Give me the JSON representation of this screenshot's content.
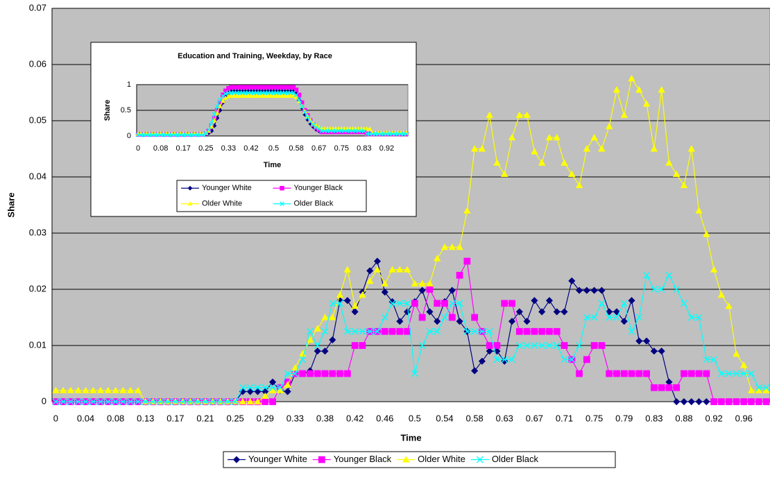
{
  "chart_data": [
    {
      "type": "line",
      "x_label": "Time",
      "y_label": "Share",
      "categories": [
        "0",
        null,
        null,
        null,
        "0.04",
        null,
        null,
        null,
        "0.08",
        null,
        null,
        null,
        "0.13",
        null,
        null,
        null,
        "0.17",
        null,
        null,
        null,
        "0.21",
        null,
        null,
        null,
        "0.25",
        null,
        null,
        null,
        "0.29",
        null,
        null,
        null,
        "0.33",
        null,
        null,
        null,
        "0.38",
        null,
        null,
        null,
        "0.42",
        null,
        null,
        null,
        "0.46",
        null,
        null,
        null,
        "0.5",
        null,
        null,
        null,
        "0.54",
        null,
        null,
        null,
        "0.58",
        null,
        null,
        null,
        "0.63",
        null,
        null,
        null,
        "0.67",
        null,
        null,
        null,
        "0.71",
        null,
        null,
        null,
        "0.75",
        null,
        null,
        null,
        "0.79",
        null,
        null,
        null,
        "0.83",
        null,
        null,
        null,
        "0.88",
        null,
        null,
        null,
        "0.92",
        null,
        null,
        null,
        "0.96",
        null,
        null,
        null
      ],
      "ylim": [
        0,
        0.07
      ],
      "yticks": [
        0,
        0.01,
        0.02,
        0.03,
        0.04,
        0.05,
        0.06,
        0.07
      ],
      "grid": true,
      "legend": "bottom",
      "series": [
        {
          "name": "Younger White",
          "color": "#000080",
          "marker": "diamond",
          "values": [
            0,
            0,
            0,
            0,
            0,
            0,
            0,
            0,
            0,
            0,
            0,
            0,
            0,
            0,
            0,
            0,
            0,
            0,
            0,
            0,
            0,
            0,
            0,
            0,
            0,
            0.0018,
            0.0018,
            0.0018,
            0.0018,
            0.0035,
            0.002,
            0.0018,
            0.005,
            0.005,
            0.0055,
            0.009,
            0.009,
            0.011,
            0.018,
            0.018,
            0.016,
            0.0195,
            0.0233,
            0.025,
            0.0195,
            0.0178,
            0.0143,
            0.016,
            0.0178,
            0.0198,
            0.016,
            0.0143,
            0.0178,
            0.0198,
            0.0143,
            0.0125,
            0.0055,
            0.0072,
            0.009,
            0.009,
            0.0072,
            0.0143,
            0.016,
            0.0143,
            0.018,
            0.016,
            0.018,
            0.016,
            0.016,
            0.0215,
            0.0198,
            0.0198,
            0.0198,
            0.0198,
            0.016,
            0.016,
            0.0143,
            0.018,
            0.0108,
            0.0108,
            0.009,
            0.009,
            0.0035,
            0,
            0,
            0,
            0,
            0,
            0,
            0,
            0,
            0,
            0,
            0,
            0,
            0
          ]
        },
        {
          "name": "Younger Black",
          "color": "#ff00ff",
          "marker": "square",
          "values": [
            0,
            0,
            0,
            0,
            0,
            0,
            0,
            0,
            0,
            0,
            0,
            0,
            0,
            0,
            0,
            0,
            0,
            0,
            0,
            0,
            0,
            0,
            0,
            0,
            0,
            0,
            0,
            0,
            0,
            0,
            0.0025,
            0.0035,
            0.005,
            0.005,
            0.005,
            0.005,
            0.005,
            0.005,
            0.005,
            0.005,
            0.01,
            0.01,
            0.0125,
            0.0125,
            0.0125,
            0.0125,
            0.0125,
            0.0125,
            0.0175,
            0.015,
            0.02,
            0.0175,
            0.0175,
            0.015,
            0.0225,
            0.025,
            0.015,
            0.0125,
            0.01,
            0.01,
            0.0175,
            0.0175,
            0.0125,
            0.0125,
            0.0125,
            0.0125,
            0.0125,
            0.0125,
            0.01,
            0.0075,
            0.005,
            0.0075,
            0.01,
            0.01,
            0.005,
            0.005,
            0.005,
            0.005,
            0.005,
            0.005,
            0.0025,
            0.0025,
            0.0025,
            0.0025,
            0.005,
            0.005,
            0.005,
            0.005,
            0,
            0,
            0,
            0,
            0,
            0,
            0,
            0
          ]
        },
        {
          "name": "Older White",
          "color": "#ffff00",
          "marker": "triangle",
          "values": [
            0.002,
            0.002,
            0.002,
            0.002,
            0.002,
            0.002,
            0.002,
            0.002,
            0.002,
            0.002,
            0.002,
            0.002,
            0,
            0,
            0,
            0,
            0,
            0,
            0,
            0,
            0,
            0,
            0,
            0,
            0,
            0,
            0,
            0,
            0.001,
            0.002,
            0.002,
            0.003,
            0.006,
            0.0085,
            0.011,
            0.013,
            0.015,
            0.015,
            0.019,
            0.0235,
            0.017,
            0.019,
            0.0215,
            0.0235,
            0.021,
            0.0235,
            0.0235,
            0.0235,
            0.021,
            0.021,
            0.021,
            0.0255,
            0.0275,
            0.0275,
            0.0275,
            0.034,
            0.045,
            0.045,
            0.051,
            0.0425,
            0.0405,
            0.047,
            0.051,
            0.051,
            0.0445,
            0.0425,
            0.047,
            0.047,
            0.0425,
            0.0405,
            0.0385,
            0.045,
            0.047,
            0.045,
            0.049,
            0.0555,
            0.051,
            0.0575,
            0.0555,
            0.053,
            0.045,
            0.0555,
            0.0425,
            0.0405,
            0.0385,
            0.045,
            0.034,
            0.0298,
            0.0235,
            0.019,
            0.017,
            0.0085,
            0.0065,
            0.002,
            0.002,
            0.002
          ]
        },
        {
          "name": "Older Black",
          "color": "#00ffff",
          "marker": "x",
          "values": [
            0,
            0,
            0,
            0,
            0,
            0,
            0,
            0,
            0,
            0,
            0,
            0,
            0,
            0,
            0,
            0,
            0,
            0,
            0,
            0,
            0,
            0,
            0,
            0,
            0,
            0.0025,
            0.0025,
            0.0025,
            0.0025,
            0.0025,
            0.0025,
            0.005,
            0.005,
            0.0075,
            0.0125,
            0.01,
            0.0125,
            0.0175,
            0.0175,
            0.0125,
            0.0125,
            0.0125,
            0.0125,
            0.0125,
            0.015,
            0.0175,
            0.0175,
            0.0175,
            0.005,
            0.01,
            0.0125,
            0.0125,
            0.015,
            0.0175,
            0.0175,
            0.0125,
            0.0125,
            0.0125,
            0.0125,
            0.0075,
            0.0075,
            0.0075,
            0.01,
            0.01,
            0.01,
            0.01,
            0.01,
            0.01,
            0.0075,
            0.0075,
            0.01,
            0.015,
            0.015,
            0.0175,
            0.015,
            0.015,
            0.0175,
            0.0125,
            0.015,
            0.0225,
            0.02,
            0.02,
            0.0225,
            0.02,
            0.0175,
            0.015,
            0.015,
            0.0075,
            0.0075,
            0.005,
            0.005,
            0.005,
            0.005,
            0.005,
            0.0025,
            0.0025
          ]
        }
      ]
    },
    {
      "type": "line",
      "title": "Education and Training, Weekday, by Race",
      "x_label": "Time",
      "y_label": "Share",
      "categories": [
        "0",
        null,
        null,
        null,
        null,
        null,
        null,
        null,
        "0.08",
        null,
        null,
        null,
        null,
        null,
        null,
        null,
        "0.17",
        null,
        null,
        null,
        null,
        null,
        null,
        null,
        "0.25",
        null,
        null,
        null,
        null,
        null,
        null,
        null,
        "0.33",
        null,
        null,
        null,
        null,
        null,
        null,
        null,
        "0.42",
        null,
        null,
        null,
        null,
        null,
        null,
        null,
        "0.5",
        null,
        null,
        null,
        null,
        null,
        null,
        null,
        "0.58",
        null,
        null,
        null,
        null,
        null,
        null,
        null,
        "0.67",
        null,
        null,
        null,
        null,
        null,
        null,
        null,
        "0.75",
        null,
        null,
        null,
        null,
        null,
        null,
        null,
        "0.83",
        null,
        null,
        null,
        null,
        null,
        null,
        null,
        "0.92",
        null,
        null,
        null,
        null,
        null,
        null,
        null
      ],
      "ylim": [
        0,
        1
      ],
      "yticks": [
        0,
        0.5,
        1
      ],
      "grid": true,
      "legend": "bottom",
      "series": [
        {
          "name": "Younger White",
          "color": "#000080",
          "marker": "diamond",
          "values": [
            0.03,
            0.03,
            0.03,
            0.03,
            0.03,
            0.03,
            0.03,
            0.03,
            0.03,
            0.03,
            0.03,
            0.03,
            0.03,
            0.03,
            0.03,
            0.03,
            0.03,
            0.03,
            0.03,
            0.03,
            0.03,
            0.03,
            0.03,
            0.03,
            0.04,
            0.06,
            0.1,
            0.2,
            0.35,
            0.5,
            0.65,
            0.77,
            0.84,
            0.87,
            0.87,
            0.87,
            0.87,
            0.87,
            0.87,
            0.87,
            0.87,
            0.87,
            0.87,
            0.87,
            0.87,
            0.87,
            0.87,
            0.87,
            0.87,
            0.87,
            0.87,
            0.87,
            0.87,
            0.87,
            0.87,
            0.87,
            0.83,
            0.7,
            0.55,
            0.42,
            0.32,
            0.24,
            0.18,
            0.13,
            0.1,
            0.08,
            0.08,
            0.08,
            0.08,
            0.08,
            0.08,
            0.08,
            0.08,
            0.08,
            0.08,
            0.08,
            0.08,
            0.08,
            0.08,
            0.08,
            0.08,
            0.04,
            0.04,
            0.04,
            0.04,
            0.04,
            0.04,
            0.04,
            0.04,
            0.04,
            0.04,
            0.04,
            0.04,
            0.04,
            0.04,
            0.04
          ]
        },
        {
          "name": "Younger Black",
          "color": "#ff00ff",
          "marker": "square",
          "values": [
            0.03,
            0.03,
            0.03,
            0.03,
            0.03,
            0.03,
            0.03,
            0.03,
            0.03,
            0.03,
            0.03,
            0.03,
            0.03,
            0.03,
            0.03,
            0.03,
            0.03,
            0.03,
            0.03,
            0.03,
            0.03,
            0.03,
            0.03,
            0.03,
            0.05,
            0.1,
            0.2,
            0.35,
            0.5,
            0.65,
            0.8,
            0.88,
            0.93,
            0.95,
            0.95,
            0.95,
            0.95,
            0.95,
            0.95,
            0.95,
            0.95,
            0.95,
            0.95,
            0.95,
            0.95,
            0.95,
            0.95,
            0.95,
            0.95,
            0.95,
            0.95,
            0.95,
            0.95,
            0.95,
            0.95,
            0.95,
            0.9,
            0.8,
            0.65,
            0.5,
            0.4,
            0.3,
            0.22,
            0.16,
            0.12,
            0.08,
            0.08,
            0.08,
            0.08,
            0.08,
            0.08,
            0.08,
            0.08,
            0.08,
            0.08,
            0.08,
            0.08,
            0.08,
            0.08,
            0.08,
            0.08,
            0.04,
            0.04,
            0.04,
            0.04,
            0.04,
            0.04,
            0.04,
            0.04,
            0.04,
            0.04,
            0.04,
            0.04,
            0.04,
            0.04,
            0.04
          ]
        },
        {
          "name": "Older White",
          "color": "#ffff00",
          "marker": "triangle",
          "values": [
            0.04,
            0.04,
            0.04,
            0.04,
            0.04,
            0.04,
            0.04,
            0.04,
            0.04,
            0.04,
            0.04,
            0.04,
            0.04,
            0.04,
            0.04,
            0.04,
            0.04,
            0.04,
            0.04,
            0.04,
            0.04,
            0.04,
            0.04,
            0.04,
            0.06,
            0.1,
            0.18,
            0.3,
            0.45,
            0.58,
            0.68,
            0.74,
            0.77,
            0.78,
            0.78,
            0.78,
            0.78,
            0.78,
            0.78,
            0.78,
            0.78,
            0.78,
            0.78,
            0.78,
            0.78,
            0.78,
            0.78,
            0.78,
            0.78,
            0.78,
            0.78,
            0.78,
            0.78,
            0.78,
            0.78,
            0.78,
            0.75,
            0.68,
            0.58,
            0.48,
            0.38,
            0.3,
            0.24,
            0.2,
            0.17,
            0.14,
            0.14,
            0.14,
            0.14,
            0.14,
            0.14,
            0.14,
            0.14,
            0.14,
            0.14,
            0.14,
            0.14,
            0.14,
            0.14,
            0.14,
            0.14,
            0.14,
            0.14,
            0.06,
            0.06,
            0.06,
            0.06,
            0.06,
            0.06,
            0.06,
            0.06,
            0.06,
            0.06,
            0.06,
            0.06,
            0.06
          ]
        },
        {
          "name": "Older Black",
          "color": "#00ffff",
          "marker": "x",
          "values": [
            0.02,
            0.02,
            0.02,
            0.02,
            0.02,
            0.02,
            0.02,
            0.02,
            0.02,
            0.02,
            0.02,
            0.02,
            0.02,
            0.02,
            0.02,
            0.02,
            0.02,
            0.02,
            0.02,
            0.02,
            0.02,
            0.02,
            0.02,
            0.02,
            0.05,
            0.12,
            0.25,
            0.42,
            0.58,
            0.7,
            0.78,
            0.82,
            0.84,
            0.84,
            0.84,
            0.84,
            0.84,
            0.84,
            0.84,
            0.84,
            0.84,
            0.84,
            0.84,
            0.84,
            0.84,
            0.84,
            0.84,
            0.84,
            0.84,
            0.84,
            0.84,
            0.84,
            0.84,
            0.84,
            0.84,
            0.84,
            0.8,
            0.7,
            0.58,
            0.46,
            0.36,
            0.28,
            0.22,
            0.17,
            0.14,
            0.1,
            0.1,
            0.1,
            0.1,
            0.1,
            0.1,
            0.1,
            0.1,
            0.1,
            0.1,
            0.1,
            0.1,
            0.1,
            0.1,
            0.1,
            0.1,
            0.04,
            0.04,
            0.04,
            0.04,
            0.04,
            0.04,
            0.04,
            0.04,
            0.04,
            0.04,
            0.04,
            0.04,
            0.04,
            0.04,
            0.04
          ]
        }
      ]
    }
  ]
}
